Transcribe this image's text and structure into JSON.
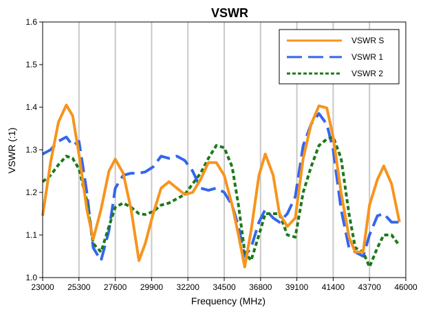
{
  "chart_data": {
    "type": "line",
    "title": "VSWR",
    "xlabel": "Frequency (MHz)",
    "ylabel": "VSWR (:1)",
    "xlim": [
      23000,
      46000
    ],
    "ylim": [
      1.0,
      1.6
    ],
    "xticks": [
      23000,
      25300,
      27600,
      29900,
      32200,
      34500,
      36800,
      39100,
      41400,
      43700,
      46000
    ],
    "yticks": [
      1.0,
      1.1,
      1.2,
      1.3,
      1.4,
      1.5,
      1.6
    ],
    "xtick_labels": [
      "23000",
      "25300",
      "27600",
      "29900",
      "32200",
      "34500",
      "36800",
      "39100",
      "41400",
      "43700",
      "46000"
    ],
    "ytick_labels": [
      "1.0",
      "1.1",
      "1.2",
      "1.3",
      "1.4",
      "1.5",
      "1.6"
    ],
    "grid": "vertical",
    "legend_position": "top-right",
    "series": [
      {
        "name": "VSWR S",
        "color": "#F7941D",
        "style": "solid",
        "x": [
          23000,
          23500,
          24000,
          24500,
          24900,
          25300,
          25800,
          26200,
          26700,
          27200,
          27600,
          28100,
          28600,
          29100,
          29500,
          30000,
          30500,
          31000,
          31500,
          32000,
          32500,
          33000,
          33500,
          34000,
          34500,
          35000,
          35400,
          35800,
          36200,
          36700,
          37100,
          37600,
          38000,
          38500,
          39000,
          39500,
          40000,
          40500,
          41000,
          41400,
          41900,
          42400,
          42800,
          43300,
          43700,
          44200,
          44600,
          45100,
          45600
        ],
        "values": [
          1.145,
          1.27,
          1.365,
          1.405,
          1.38,
          1.29,
          1.16,
          1.09,
          1.16,
          1.25,
          1.278,
          1.245,
          1.16,
          1.04,
          1.08,
          1.15,
          1.21,
          1.225,
          1.21,
          1.195,
          1.2,
          1.23,
          1.27,
          1.27,
          1.24,
          1.17,
          1.1,
          1.025,
          1.11,
          1.24,
          1.29,
          1.24,
          1.15,
          1.12,
          1.14,
          1.28,
          1.36,
          1.403,
          1.398,
          1.33,
          1.2,
          1.095,
          1.06,
          1.06,
          1.17,
          1.23,
          1.262,
          1.22,
          1.13
        ]
      },
      {
        "name": "VSWR 1",
        "color": "#3366EE",
        "style": "dashed",
        "x": [
          23000,
          23500,
          24000,
          24500,
          24900,
          25300,
          25800,
          26200,
          26700,
          27200,
          27600,
          28100,
          28600,
          29100,
          29500,
          30000,
          30500,
          31000,
          31500,
          32000,
          32500,
          33000,
          33500,
          34000,
          34500,
          35000,
          35400,
          35800,
          36200,
          36700,
          37100,
          37600,
          38000,
          38500,
          39000,
          39500,
          40000,
          40500,
          41000,
          41400,
          41900,
          42400,
          42800,
          43300,
          43700,
          44200,
          44600,
          45100,
          45600
        ],
        "values": [
          1.29,
          1.3,
          1.32,
          1.33,
          1.31,
          1.32,
          1.2,
          1.07,
          1.04,
          1.11,
          1.21,
          1.24,
          1.245,
          1.245,
          1.248,
          1.26,
          1.285,
          1.28,
          1.285,
          1.275,
          1.25,
          1.21,
          1.205,
          1.21,
          1.2,
          1.17,
          1.12,
          1.05,
          1.07,
          1.13,
          1.16,
          1.14,
          1.13,
          1.15,
          1.19,
          1.31,
          1.36,
          1.385,
          1.36,
          1.3,
          1.16,
          1.07,
          1.06,
          1.05,
          1.1,
          1.145,
          1.15,
          1.13,
          1.13
        ]
      },
      {
        "name": "VSWR 2",
        "color": "#1A7A1A",
        "style": "dotted",
        "x": [
          23000,
          23500,
          24000,
          24500,
          24900,
          25300,
          25800,
          26200,
          26700,
          27200,
          27600,
          28100,
          28600,
          29100,
          29500,
          30000,
          30500,
          31000,
          31500,
          32000,
          32500,
          33000,
          33500,
          34000,
          34500,
          35000,
          35400,
          35800,
          36200,
          36700,
          37100,
          37600,
          38000,
          38500,
          39000,
          39500,
          40000,
          40500,
          41000,
          41400,
          41900,
          42400,
          42800,
          43300,
          43700,
          44200,
          44600,
          45100,
          45600
        ],
        "values": [
          1.225,
          1.24,
          1.265,
          1.285,
          1.28,
          1.255,
          1.18,
          1.08,
          1.06,
          1.12,
          1.165,
          1.175,
          1.165,
          1.15,
          1.148,
          1.155,
          1.17,
          1.175,
          1.185,
          1.195,
          1.22,
          1.245,
          1.28,
          1.31,
          1.305,
          1.26,
          1.17,
          1.06,
          1.04,
          1.1,
          1.15,
          1.15,
          1.15,
          1.1,
          1.095,
          1.2,
          1.26,
          1.31,
          1.325,
          1.33,
          1.28,
          1.15,
          1.07,
          1.06,
          1.025,
          1.07,
          1.1,
          1.1,
          1.075
        ]
      }
    ]
  }
}
